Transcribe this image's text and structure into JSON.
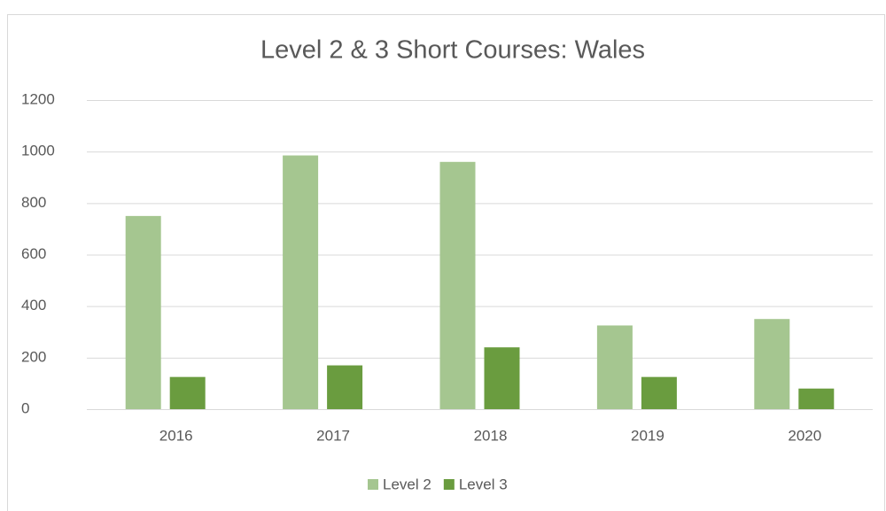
{
  "chart_data": {
    "type": "bar",
    "title": "Level 2 & 3 Short Courses: Wales",
    "categories": [
      "2016",
      "2017",
      "2018",
      "2019",
      "2020"
    ],
    "series": [
      {
        "name": "Level 2",
        "color": "#a5c690",
        "values": [
          750,
          985,
          960,
          325,
          350
        ]
      },
      {
        "name": "Level 3",
        "color": "#6a9c3f",
        "values": [
          125,
          170,
          240,
          125,
          80
        ]
      }
    ],
    "ylim": [
      0,
      1200
    ],
    "yticks": [
      0,
      200,
      400,
      600,
      800,
      1000,
      1200
    ],
    "grid": true,
    "legend": "bottom"
  }
}
